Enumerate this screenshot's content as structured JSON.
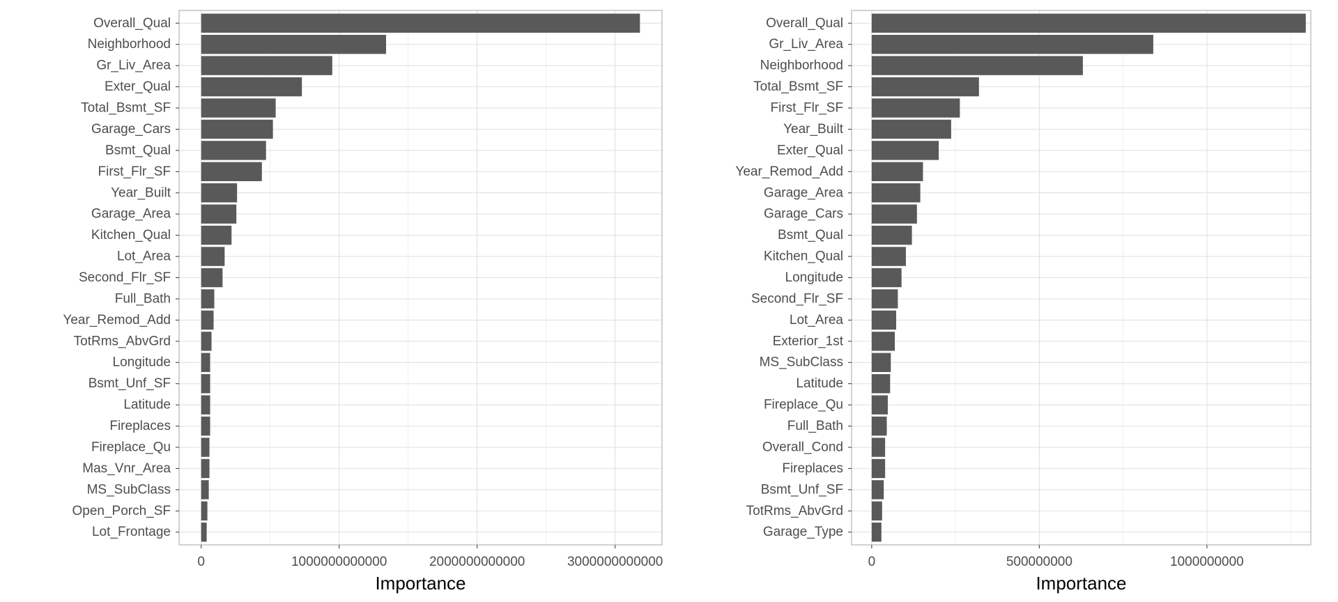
{
  "chart_data": [
    {
      "type": "bar",
      "orientation": "horizontal",
      "xlabel": "Importance",
      "ylabel": "",
      "title": "",
      "xlim": [
        -160000000000,
        3340000000000
      ],
      "xticks": [
        0,
        1000000000000,
        2000000000000,
        3000000000000
      ],
      "xtick_labels": [
        "0",
        "1000000000000",
        "2000000000000",
        "3000000000000"
      ],
      "grid": true,
      "bar_color": "#595959",
      "categories": [
        "Overall_Qual",
        "Neighborhood",
        "Gr_Liv_Area",
        "Exter_Qual",
        "Total_Bsmt_SF",
        "Garage_Cars",
        "Bsmt_Qual",
        "First_Flr_SF",
        "Year_Built",
        "Garage_Area",
        "Kitchen_Qual",
        "Lot_Area",
        "Second_Flr_SF",
        "Full_Bath",
        "Year_Remod_Add",
        "TotRms_AbvGrd",
        "Longitude",
        "Bsmt_Unf_SF",
        "Latitude",
        "Fireplaces",
        "Fireplace_Qu",
        "Mas_Vnr_Area",
        "MS_SubClass",
        "Open_Porch_SF",
        "Lot_Frontage"
      ],
      "values": [
        3180000000000,
        1340000000000,
        950000000000,
        730000000000,
        540000000000,
        520000000000,
        470000000000,
        440000000000,
        260000000000,
        255000000000,
        220000000000,
        170000000000,
        155000000000,
        95000000000,
        90000000000,
        75000000000,
        65000000000,
        65000000000,
        65000000000,
        65000000000,
        60000000000,
        60000000000,
        55000000000,
        45000000000,
        40000000000
      ]
    },
    {
      "type": "bar",
      "orientation": "horizontal",
      "xlabel": "Importance",
      "ylabel": "",
      "title": "",
      "xlim": [
        -60000000,
        1310000000
      ],
      "xticks": [
        0,
        500000000,
        1000000000
      ],
      "xtick_labels": [
        "0",
        "500000000",
        "1000000000"
      ],
      "grid": true,
      "bar_color": "#595959",
      "categories": [
        "Overall_Qual",
        "Gr_Liv_Area",
        "Neighborhood",
        "Total_Bsmt_SF",
        "First_Flr_SF",
        "Year_Built",
        "Exter_Qual",
        "Year_Remod_Add",
        "Garage_Area",
        "Garage_Cars",
        "Bsmt_Qual",
        "Kitchen_Qual",
        "Longitude",
        "Second_Flr_SF",
        "Lot_Area",
        "Exterior_1st",
        "MS_SubClass",
        "Latitude",
        "Fireplace_Qu",
        "Full_Bath",
        "Overall_Cond",
        "Fireplaces",
        "Bsmt_Unf_SF",
        "TotRms_AbvGrd",
        "Garage_Type"
      ],
      "values": [
        1295000000,
        840000000,
        630000000,
        320000000,
        263000000,
        237000000,
        200000000,
        153000000,
        145000000,
        135000000,
        120000000,
        102000000,
        89000000,
        78000000,
        73000000,
        69000000,
        57000000,
        55000000,
        48000000,
        45000000,
        40000000,
        40000000,
        36000000,
        31000000,
        29000000
      ]
    }
  ]
}
